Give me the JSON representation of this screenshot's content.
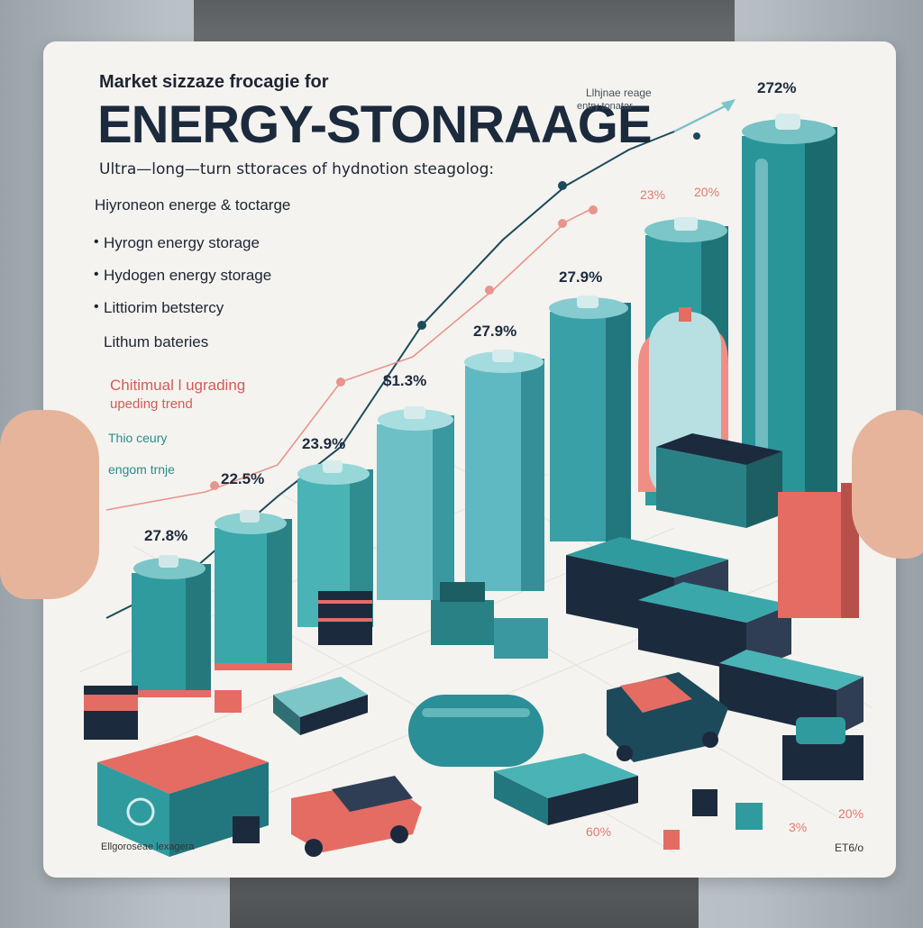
{
  "poster": {
    "heading_small": "Market sizzaze frocagie for",
    "title": "ENERGY-STONRAAGE",
    "tagline": "Ultra—long—turn sttoraces of hydnotion steagolog:",
    "section": "Hiyroneon energe & toctarge",
    "bullets": [
      "Hyrogn energy storage",
      "Hydogen energy storage",
      "Littiorim betstercy",
      "Lithum bateries"
    ],
    "trend_line1": "Chitimual l ugrading",
    "trend_line2": "upeding trend",
    "note1": "Thio ceury",
    "note2": "engom trnje",
    "legend_line1": "Llhjnae reage",
    "legend_line2": "entry tonatar",
    "footer_left": "Ellgoroseae lexagera",
    "footer_right": "ET6/o"
  },
  "percent_labels": {
    "p1": "27.8%",
    "p2": "22.5%",
    "p3": "23.9%",
    "p4": "$1.3%",
    "p5": "27.9%",
    "p6": "27.9%",
    "p7": "272%"
  },
  "accent_labels": {
    "a1": "23%",
    "a2": "20%",
    "a3": "60%",
    "a4": "3%",
    "a5": "20%"
  },
  "colors": {
    "teal": "#2f9b9f",
    "teal_light": "#7cc6c8",
    "navy": "#1c2a3d",
    "coral": "#e46c63"
  }
}
